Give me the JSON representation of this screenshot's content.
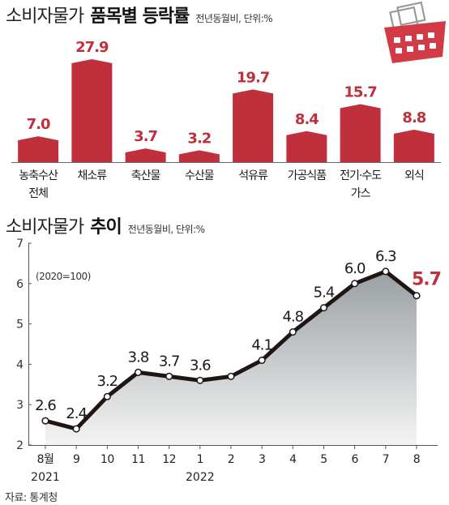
{
  "bar_section": {
    "title_light": "소비자물가",
    "title_bold": "품목별 등락률",
    "note": "전년동월비, 단위:%"
  },
  "line_section": {
    "title_light": "소비자물가",
    "title_bold": "추이",
    "note": "전년동월비, 단위:%",
    "annotation": "(2020=100)"
  },
  "source": "자료: 통계청",
  "colors": {
    "bar": "#c0303c",
    "line": "#1f1613",
    "area_top": "#9aa0a3",
    "area_bottom": "#f4f4f4",
    "highlight": "#c0303c",
    "basket": "#d23a45"
  },
  "icons": {
    "logo": "shopping-basket-icon"
  },
  "chart_data": [
    {
      "type": "bar",
      "categories": [
        "농축수산\n전체",
        "채소류",
        "축산물",
        "수산물",
        "석유류",
        "가공식품",
        "전기·수도\n가스",
        "외식"
      ],
      "values": [
        7.0,
        27.9,
        3.7,
        3.2,
        19.7,
        8.4,
        15.7,
        8.8
      ],
      "value_labels": [
        "7.0",
        "27.9",
        "3.7",
        "3.2",
        "19.7",
        "8.4",
        "15.7",
        "8.8"
      ],
      "title": "품목별 등락률",
      "ylim": [
        0,
        27.9
      ]
    },
    {
      "type": "area",
      "x": [
        "8월",
        "9",
        "10",
        "11",
        "12",
        "1",
        "2",
        "3",
        "4",
        "5",
        "6",
        "7",
        "8"
      ],
      "year_labels": [
        "2021",
        "2022"
      ],
      "values": [
        2.6,
        2.4,
        3.2,
        3.8,
        3.7,
        3.6,
        3.7,
        4.1,
        4.8,
        5.4,
        6.0,
        6.3,
        5.7
      ],
      "value_labels": [
        "2.6",
        "2.4",
        "3.2",
        "3.8",
        "3.7",
        "3.6",
        "",
        "4.1",
        "4.8",
        "5.4",
        "6.0",
        "6.3",
        "5.7"
      ],
      "title": "추이",
      "yticks": [
        "2",
        "3",
        "4",
        "5",
        "6",
        "7"
      ],
      "ylim": [
        2,
        7
      ],
      "grid": false,
      "markers": true
    }
  ]
}
